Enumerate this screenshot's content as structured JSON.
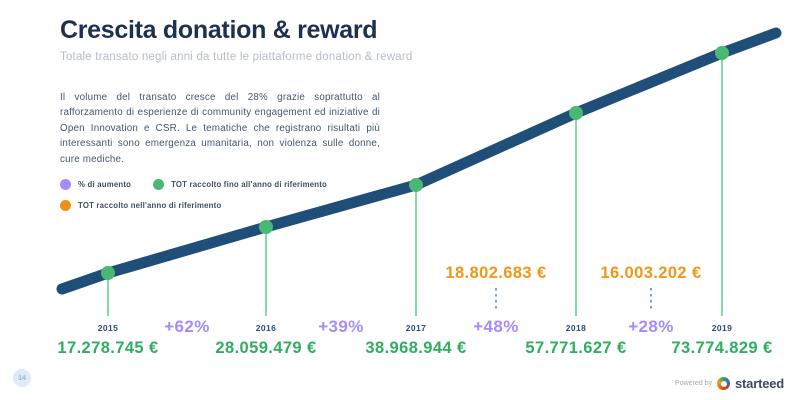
{
  "page": {
    "title": "Crescita donation & reward",
    "subtitle": "Totale transato negli anni da tutte le piattaforme donation & reward",
    "description": "Il volume del transato cresce del 28% grazie soprattutto al rafforzamento di esperienze di community engagement ed iniziative di Open Innovation e CSR. Le tematiche che registrano risultati più interessanti sono emergenza umanitaria, non violenza sulle donne, cure mediche.",
    "page_number": "14",
    "footer": {
      "powered_by_label": "Powered by",
      "brand_name": "starteed"
    }
  },
  "legend": {
    "items": [
      {
        "label": "% di aumento",
        "color": "#a78bfa"
      },
      {
        "label": "TOT raccolto fino all'anno di riferimento",
        "color": "#48b872"
      },
      {
        "label": "TOT raccolto nell'anno di riferimento",
        "color": "#ec9117"
      }
    ]
  },
  "chart_data": {
    "type": "line",
    "title": "Crescita donation & reward",
    "x": [
      "2015",
      "2016",
      "2017",
      "2018",
      "2019"
    ],
    "series": [
      {
        "name": "TOT raccolto fino all'anno di riferimento",
        "values": [
          17278745,
          28059479,
          38968944,
          57771627,
          73774829
        ],
        "value_labels": [
          "17.278.745 €",
          "28.059.479 €",
          "38.968.944 €",
          "57.771.627 €",
          "73.774.829 €"
        ],
        "color": "#2fae63"
      }
    ],
    "growth_percent": {
      "name": "% di aumento",
      "values": [
        62,
        39,
        48,
        28
      ],
      "labels": [
        "+62%",
        "+39%",
        "+48%",
        "+28%"
      ],
      "color": "#a78bfa"
    },
    "annual_totals": {
      "name": "TOT raccolto nell'anno di riferimento",
      "values": [
        18802683,
        16003202
      ],
      "labels": [
        "18.802.683 €",
        "16.003.202 €"
      ],
      "between_years": [
        [
          "2017",
          "2018"
        ],
        [
          "2018",
          "2019"
        ]
      ],
      "color": "#f09618"
    },
    "line_color": "#1f4e79",
    "marker_color": "#48b872",
    "drop_line_color": "#63d193",
    "connector_color": "#7da0c9",
    "grid": false,
    "legend_position": "left"
  }
}
